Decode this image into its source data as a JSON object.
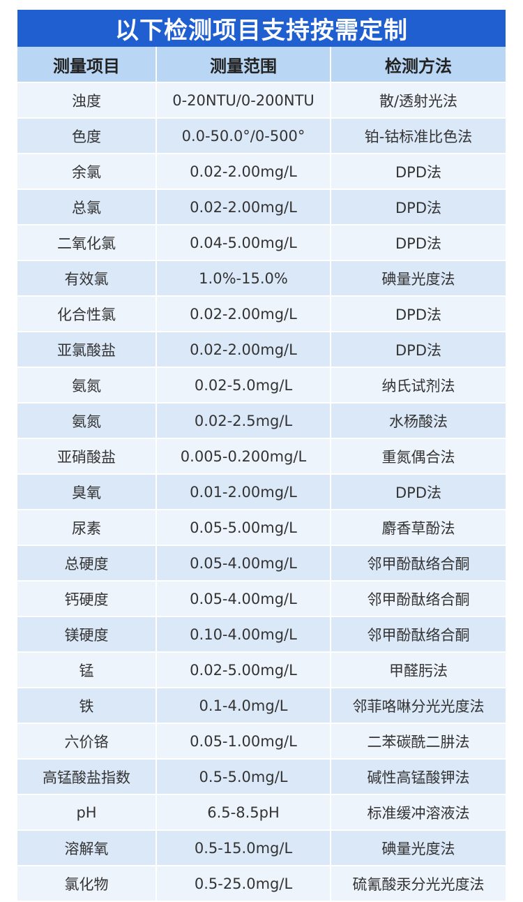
{
  "title": "以下检测项目支持按需定制",
  "headers": [
    "测量项目",
    "测量范围",
    "检测方法"
  ],
  "rows": [
    [
      "浊度",
      "0-20NTU/0-200NTU",
      "散/透射光法"
    ],
    [
      "色度",
      "0.0-50.0°/0-500°",
      "铂-钴标准比色法"
    ],
    [
      "余氯",
      "0.02-2.00mg/L",
      "DPD法"
    ],
    [
      "总氯",
      "0.02-2.00mg/L",
      "DPD法"
    ],
    [
      "二氧化氯",
      "0.04-5.00mg/L",
      "DPD法"
    ],
    [
      "有效氯",
      "1.0%-15.0%",
      "碘量光度法"
    ],
    [
      "化合性氯",
      "0.02-2.00mg/L",
      "DPD法"
    ],
    [
      "亚氯酸盐",
      "0.02-2.00mg/L",
      "DPD法"
    ],
    [
      "氨氮",
      "0.02-5.0mg/L",
      "纳氏试剂法"
    ],
    [
      "氨氮",
      "0.02-2.5mg/L",
      "水杨酸法"
    ],
    [
      "亚硝酸盐",
      "0.005-0.200mg/L",
      "重氮偶合法"
    ],
    [
      "臭氧",
      "0.01-2.00mg/L",
      "DPD法"
    ],
    [
      "尿素",
      "0.05-5.00mg/L",
      "麝香草酚法"
    ],
    [
      "总硬度",
      "0.05-4.00mg/L",
      "邻甲酚酞络合酮"
    ],
    [
      "钙硬度",
      "0.05-4.00mg/L",
      "邻甲酚酞络合酮"
    ],
    [
      "镁硬度",
      "0.10-4.00mg/L",
      "邻甲酚酞络合酮"
    ],
    [
      "锰",
      "0.02-5.00mg/L",
      "甲醛肟法"
    ],
    [
      "铁",
      "0.1-4.0mg/L",
      "邻菲咯啉分光光度法"
    ],
    [
      "六价铬",
      "0.05-1.00mg/L",
      "二苯碳酰二肼法"
    ],
    [
      "高锰酸盐指数",
      "0.5-5.0mg/L",
      "碱性高锰酸钾法"
    ],
    [
      "pH",
      "6.5-8.5pH",
      "标准缓冲溶液法"
    ],
    [
      "溶解氧",
      "0.5-15.0mg/L",
      "碘量光度法"
    ],
    [
      "氯化物",
      "0.5-25.0mg/L",
      "硫氰酸汞分光光度法"
    ]
  ]
}
